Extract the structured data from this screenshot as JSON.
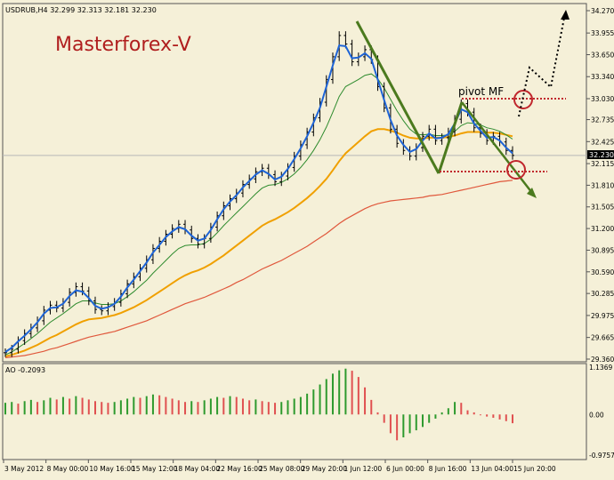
{
  "symbol_info": "USDRUB,H4  32.299 32.313 32.181 32.230",
  "watermark": "Masterforex-V",
  "pivot_label": "pivot MF",
  "current_price": "32.230",
  "ao_label": "AO -0.2093",
  "colors": {
    "background": "#f5f0d8",
    "price_bars": "#000000",
    "ema_fast": "#1e64d6",
    "ema_mid": "#2e8b2e",
    "ema_slow": "#f0a000",
    "ema_long": "#e0583c",
    "trend_lines": "#4b7a1e",
    "pivot_markers": "#c0262c",
    "ao_up": "#2e9a2e",
    "ao_down": "#e05050"
  },
  "chart_data": [
    {
      "type": "candlestick",
      "title": "USDRUB,H4",
      "ylim": [
        29.36,
        34.27
      ],
      "y_ticks": [
        "34.270",
        "33.955",
        "33.650",
        "33.340",
        "33.030",
        "32.735",
        "32.425",
        "32.115",
        "31.810",
        "31.505",
        "31.200",
        "30.895",
        "30.590",
        "30.285",
        "29.975",
        "29.665",
        "29.360"
      ],
      "x_ticks": [
        "3 May 2012",
        "8 May 00:00",
        "10 May 16:00",
        "15 May 12:00",
        "18 May 04:00",
        "22 May 16:00",
        "25 May 08:00",
        "29 May 20:00",
        "1 Jun 12:00",
        "6 Jun 00:00",
        "8 Jun 16:00",
        "13 Jun 04:00",
        "15 Jun 20:00"
      ],
      "close": [
        29.45,
        29.5,
        29.62,
        29.72,
        29.8,
        29.9,
        30.05,
        30.12,
        30.08,
        30.16,
        30.3,
        30.38,
        30.32,
        30.18,
        30.06,
        30.04,
        30.1,
        30.16,
        30.28,
        30.42,
        30.52,
        30.64,
        30.76,
        30.92,
        31.02,
        31.12,
        31.2,
        31.26,
        31.18,
        31.06,
        30.98,
        31.06,
        31.22,
        31.38,
        31.52,
        31.62,
        31.7,
        31.82,
        31.9,
        32.0,
        32.05,
        31.96,
        31.86,
        31.94,
        32.06,
        32.22,
        32.38,
        32.56,
        32.76,
        32.98,
        33.3,
        33.62,
        33.92,
        33.8,
        33.55,
        33.62,
        33.72,
        33.58,
        33.2,
        32.9,
        32.6,
        32.4,
        32.3,
        32.22,
        32.34,
        32.5,
        32.6,
        32.44,
        32.48,
        32.56,
        32.74,
        32.96,
        32.84,
        32.62,
        32.54,
        32.44,
        32.5,
        32.42,
        32.3,
        32.23
      ],
      "ema_fast": [
        29.46,
        29.52,
        29.61,
        29.69,
        29.78,
        29.88,
        30.0,
        30.08,
        30.09,
        30.14,
        30.25,
        30.33,
        30.31,
        30.22,
        30.11,
        30.07,
        30.09,
        30.14,
        30.24,
        30.37,
        30.48,
        30.6,
        30.72,
        30.86,
        30.97,
        31.08,
        31.16,
        31.22,
        31.19,
        31.1,
        31.03,
        31.06,
        31.18,
        31.33,
        31.47,
        31.58,
        31.67,
        31.78,
        31.87,
        31.96,
        32.02,
        31.97,
        31.89,
        31.93,
        32.04,
        32.18,
        32.33,
        32.5,
        32.69,
        32.9,
        33.2,
        33.5,
        33.78,
        33.77,
        33.6,
        33.61,
        33.67,
        33.59,
        33.3,
        33.01,
        32.73,
        32.51,
        32.38,
        32.28,
        32.32,
        32.44,
        32.54,
        32.47,
        32.48,
        32.53,
        32.68,
        32.88,
        32.84,
        32.68,
        32.58,
        32.48,
        32.49,
        32.44,
        32.34,
        32.26
      ],
      "ema_mid": [
        29.42,
        29.46,
        29.52,
        29.58,
        29.65,
        29.72,
        29.8,
        29.88,
        29.94,
        30.0,
        30.07,
        30.14,
        30.18,
        30.18,
        30.15,
        30.13,
        30.13,
        30.14,
        30.18,
        30.24,
        30.31,
        30.39,
        30.47,
        30.57,
        30.66,
        30.75,
        30.84,
        30.92,
        30.96,
        30.97,
        30.97,
        30.99,
        31.05,
        31.14,
        31.24,
        31.33,
        31.42,
        31.51,
        31.6,
        31.69,
        31.77,
        31.81,
        31.82,
        31.85,
        31.9,
        31.97,
        32.06,
        32.17,
        32.3,
        32.45,
        32.63,
        32.84,
        33.06,
        33.2,
        33.25,
        33.3,
        33.36,
        33.38,
        33.31,
        33.18,
        33.02,
        32.86,
        32.72,
        32.6,
        32.53,
        32.52,
        32.53,
        32.51,
        32.51,
        32.52,
        32.57,
        32.65,
        32.69,
        32.68,
        32.66,
        32.62,
        32.6,
        32.57,
        32.52,
        32.46
      ],
      "ema_slow": [
        29.4,
        29.42,
        29.45,
        29.48,
        29.52,
        29.56,
        29.61,
        29.66,
        29.7,
        29.75,
        29.8,
        29.85,
        29.89,
        29.92,
        29.93,
        29.94,
        29.96,
        29.98,
        30.01,
        30.05,
        30.09,
        30.14,
        30.19,
        30.25,
        30.31,
        30.37,
        30.43,
        30.49,
        30.54,
        30.58,
        30.61,
        30.65,
        30.7,
        30.76,
        30.82,
        30.89,
        30.96,
        31.03,
        31.1,
        31.17,
        31.24,
        31.29,
        31.33,
        31.38,
        31.43,
        31.49,
        31.56,
        31.63,
        31.71,
        31.8,
        31.9,
        32.02,
        32.15,
        32.26,
        32.34,
        32.42,
        32.5,
        32.57,
        32.6,
        32.6,
        32.58,
        32.55,
        32.51,
        32.48,
        32.47,
        32.47,
        32.48,
        32.48,
        32.48,
        32.49,
        32.51,
        32.54,
        32.56,
        32.56,
        32.56,
        32.55,
        32.55,
        32.54,
        32.52,
        32.5
      ],
      "ema_long": [
        29.38,
        29.39,
        29.4,
        29.41,
        29.43,
        29.45,
        29.47,
        29.5,
        29.52,
        29.55,
        29.58,
        29.61,
        29.64,
        29.67,
        29.69,
        29.71,
        29.73,
        29.75,
        29.78,
        29.81,
        29.84,
        29.87,
        29.9,
        29.94,
        29.98,
        30.02,
        30.06,
        30.1,
        30.14,
        30.17,
        30.2,
        30.23,
        30.27,
        30.31,
        30.35,
        30.39,
        30.44,
        30.48,
        30.53,
        30.58,
        30.63,
        30.67,
        30.71,
        30.75,
        30.8,
        30.85,
        30.9,
        30.95,
        31.01,
        31.07,
        31.13,
        31.2,
        31.27,
        31.33,
        31.38,
        31.43,
        31.48,
        31.52,
        31.55,
        31.57,
        31.59,
        31.6,
        31.61,
        31.62,
        31.63,
        31.64,
        31.66,
        31.67,
        31.68,
        31.7,
        31.72,
        31.74,
        31.76,
        31.78,
        31.8,
        31.82,
        31.84,
        31.86,
        31.87,
        31.88
      ]
    },
    {
      "type": "bar",
      "title": "AO -0.2093",
      "ylim": [
        -0.9757,
        1.1369
      ],
      "y_ticks": [
        "1.1369",
        "0.00",
        "-0.9757"
      ],
      "values": [
        0.28,
        0.3,
        0.26,
        0.32,
        0.35,
        0.3,
        0.34,
        0.4,
        0.36,
        0.42,
        0.38,
        0.44,
        0.4,
        0.36,
        0.32,
        0.3,
        0.28,
        0.3,
        0.34,
        0.38,
        0.42,
        0.4,
        0.44,
        0.48,
        0.46,
        0.42,
        0.38,
        0.34,
        0.3,
        0.32,
        0.3,
        0.34,
        0.38,
        0.42,
        0.4,
        0.44,
        0.42,
        0.38,
        0.34,
        0.36,
        0.32,
        0.3,
        0.28,
        0.3,
        0.34,
        0.38,
        0.42,
        0.5,
        0.6,
        0.72,
        0.85,
        0.98,
        1.06,
        1.1,
        1.05,
        0.9,
        0.65,
        0.35,
        0.05,
        -0.2,
        -0.45,
        -0.62,
        -0.55,
        -0.45,
        -0.38,
        -0.3,
        -0.2,
        -0.1,
        0.05,
        0.15,
        0.3,
        0.28,
        0.1,
        0.05,
        -0.02,
        -0.05,
        -0.08,
        -0.12,
        -0.16,
        -0.21
      ]
    }
  ]
}
